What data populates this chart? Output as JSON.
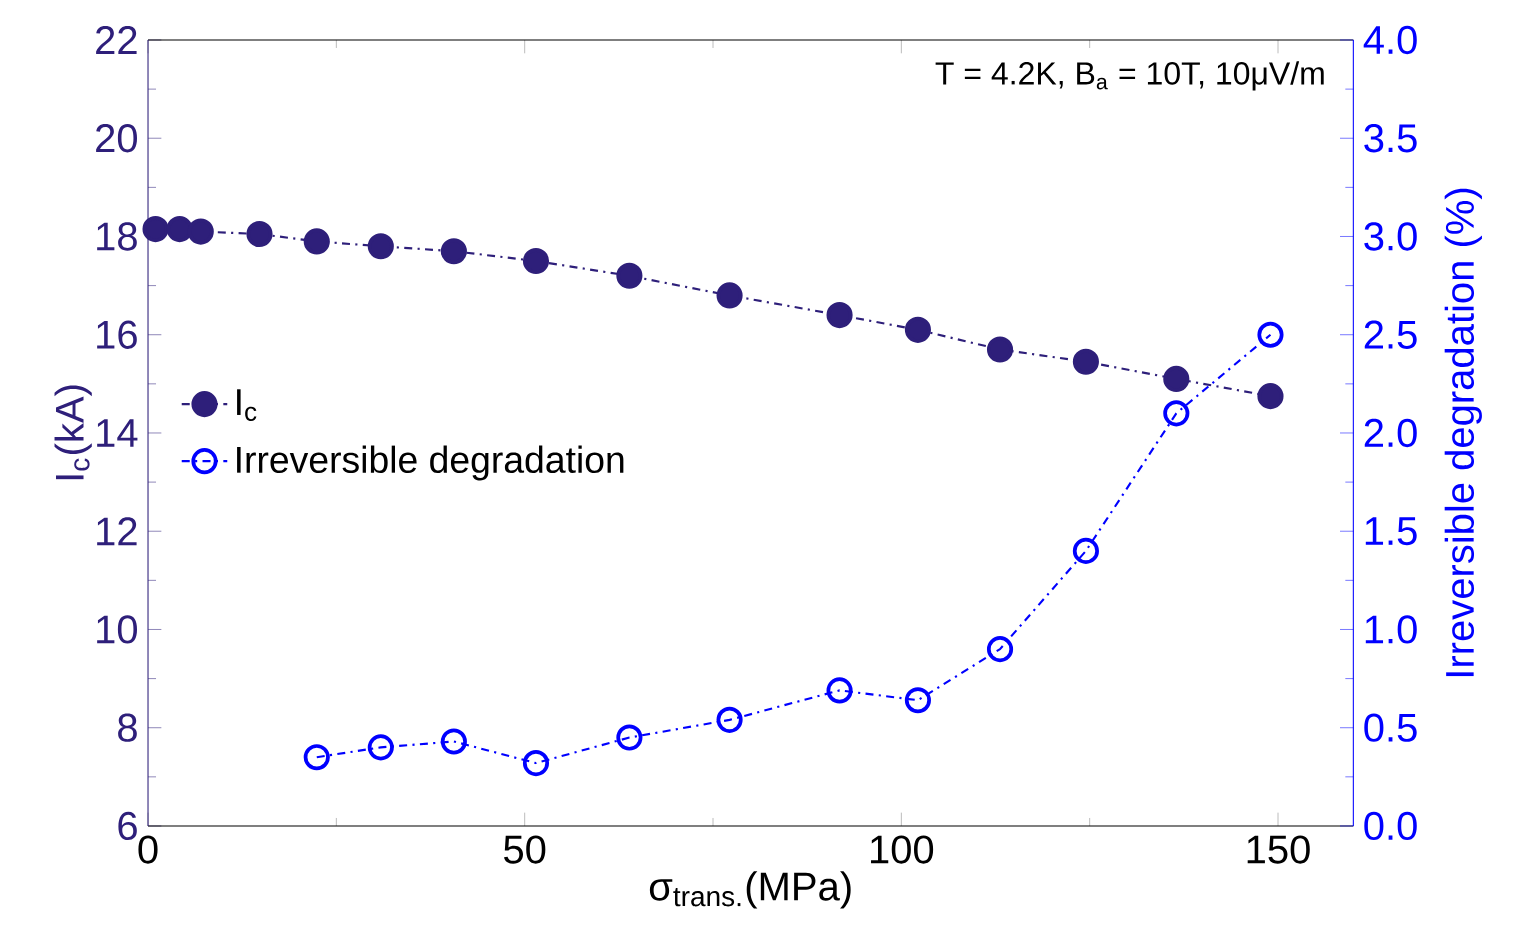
{
  "chart_data": {
    "type": "line",
    "xlabel": "σ$_{trans.}$(MPa)",
    "ylabel": "I$_{c}$(kA)",
    "y2label": "Irreversible degradation (%)",
    "annotations": [
      "T = 4.2K, B$_{a}$ = 10T, 10μV/m"
    ],
    "x": [
      1.0,
      4.2,
      7.0,
      14.8,
      22.4,
      30.9,
      40.6,
      51.5,
      63.9,
      77.2,
      91.8,
      102.2,
      113.1,
      124.5,
      136.5,
      149.0
    ],
    "series": [
      {
        "name": "I$_{c}$",
        "color": "#2e1f7a",
        "marker": "circle",
        "line_style": "dashdot",
        "values": [
          18.15,
          18.15,
          18.1,
          18.05,
          17.9,
          17.8,
          17.7,
          17.5,
          17.2,
          16.8,
          16.4,
          16.1,
          15.7,
          15.45,
          15.1,
          14.75
        ]
      },
      {
        "name": "Irreversible degradation",
        "color": "#0000ff",
        "marker": "open circle",
        "line_style": "dashdot",
        "axis": "y2",
        "x": [
          22.4,
          30.9,
          40.6,
          51.5,
          63.9,
          77.2,
          91.8,
          102.2,
          113.1,
          124.5,
          136.5,
          149.0
        ],
        "values": [
          0.35,
          0.4,
          0.43,
          0.32,
          0.45,
          0.54,
          0.69,
          0.64,
          0.9,
          1.4,
          2.1,
          2.5
        ]
      }
    ],
    "xlim": [
      0,
      160
    ],
    "xticks": [
      0,
      50,
      100,
      150
    ],
    "ylim": [
      6,
      22
    ],
    "yticks": [
      6,
      8,
      10,
      12,
      14,
      16,
      18,
      20,
      22
    ],
    "y2lim": [
      0,
      4
    ],
    "y2ticks": [
      {
        "value": 0,
        "label": "0.0"
      },
      {
        "value": 0.5,
        "label": "0.5"
      },
      {
        "value": 1,
        "label": "1.0"
      },
      {
        "value": 1.5,
        "label": "1.5"
      },
      {
        "value": 2,
        "label": "2.0"
      },
      {
        "value": 2.5,
        "label": "2.5"
      },
      {
        "value": 3,
        "label": "3.0"
      },
      {
        "value": 3.5,
        "label": "3.5"
      },
      {
        "value": 4,
        "label": "4.0"
      }
    ],
    "grid": false,
    "legend": "left"
  }
}
